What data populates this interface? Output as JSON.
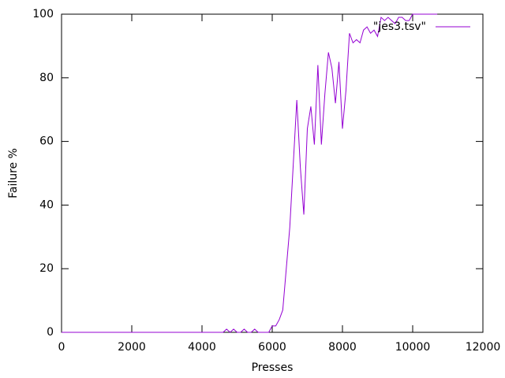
{
  "chart_data": {
    "type": "line",
    "xlabel": "Presses",
    "ylabel": "Failure %",
    "x": [
      0,
      4500,
      4600,
      4700,
      4800,
      4900,
      5000,
      5100,
      5200,
      5300,
      5400,
      5500,
      5600,
      5700,
      5800,
      5900,
      6000,
      6100,
      6200,
      6300,
      6400,
      6500,
      6600,
      6700,
      6800,
      6900,
      7000,
      7100,
      7200,
      7300,
      7400,
      7500,
      7600,
      7700,
      7800,
      7900,
      8000,
      8100,
      8200,
      8300,
      8400,
      8500,
      8600,
      8700,
      8800,
      8900,
      9000,
      9100,
      9200,
      9300,
      9400,
      9500,
      9600,
      9700,
      9800,
      9900,
      10000,
      10100,
      10200,
      10300,
      10400,
      10500,
      10600,
      10700
    ],
    "series": [
      {
        "name": "\"jes3.tsv\"",
        "color": "#9400d3",
        "values": [
          0,
          0,
          0,
          1,
          0,
          1,
          0,
          0,
          1,
          0,
          0,
          1,
          0,
          0,
          0,
          0,
          2,
          2,
          4,
          7,
          20,
          33,
          53,
          73,
          52,
          37,
          64,
          71,
          59,
          84,
          59,
          75,
          88,
          83,
          72,
          85,
          64,
          76,
          94,
          91,
          92,
          91,
          95,
          96,
          94,
          95,
          93,
          99,
          98,
          99,
          98,
          97,
          99,
          99,
          98,
          98,
          100,
          100,
          100,
          100,
          100,
          100,
          100,
          100
        ]
      }
    ],
    "xlim": [
      0,
      12000
    ],
    "ylim": [
      0,
      100
    ],
    "xticks": [
      0,
      2000,
      4000,
      6000,
      8000,
      10000,
      12000
    ],
    "yticks": [
      0,
      20,
      40,
      60,
      80,
      100
    ],
    "legend": "top-right"
  }
}
